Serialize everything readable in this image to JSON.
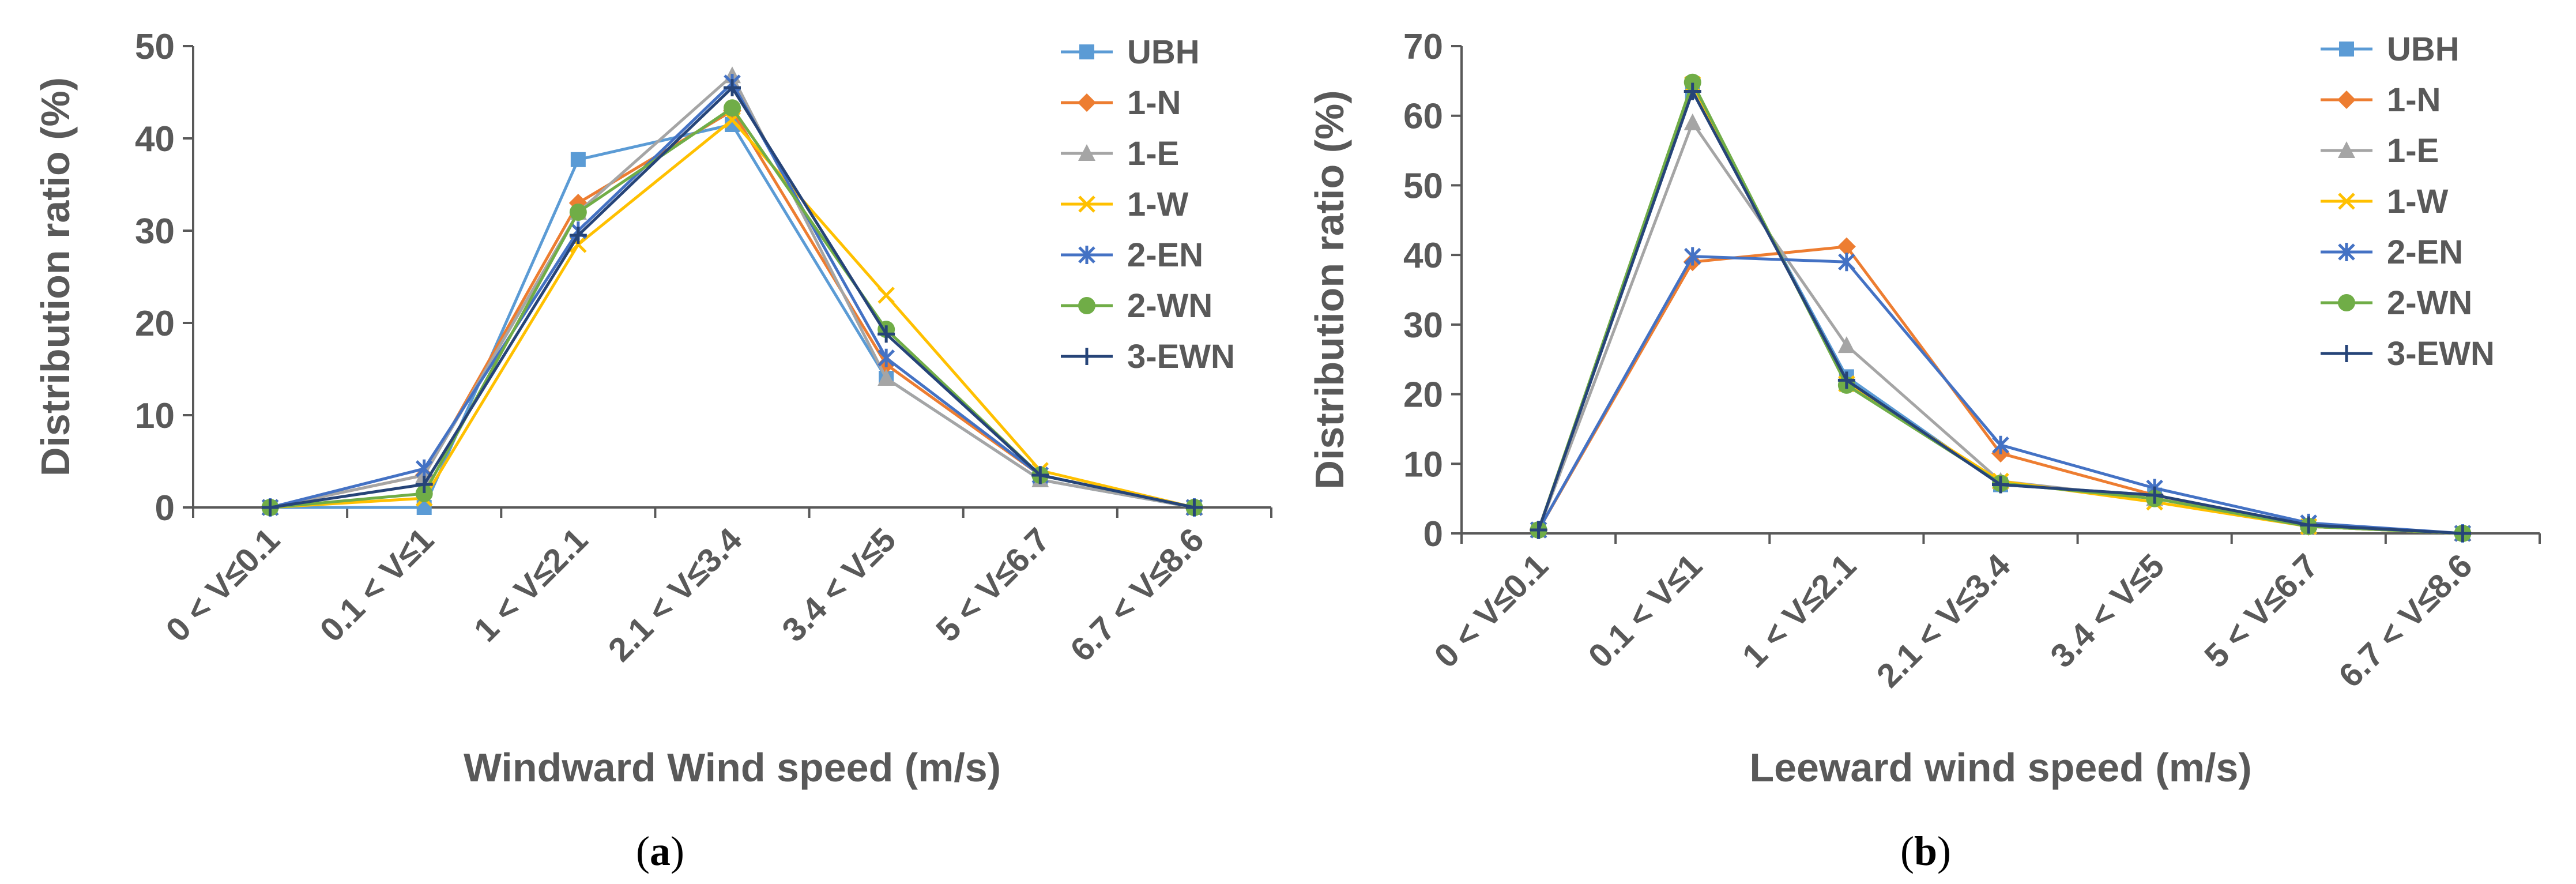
{
  "colors": {
    "UBH": "#5B9BD5",
    "1-N": "#ED7D31",
    "1-E": "#A5A5A5",
    "1-W": "#FFC000",
    "2-EN": "#4472C4",
    "2-WN": "#70AD47",
    "3-EWN": "#264478",
    "axis": "#595959"
  },
  "captions": [
    {
      "open": "(",
      "letter": "a",
      "close": ")"
    },
    {
      "open": "(",
      "letter": "b",
      "close": ")"
    }
  ],
  "chart_data": [
    {
      "type": "line",
      "categories": [
        "0 < V≤0.1",
        "0.1 < V≤1",
        "1 < V≤2.1",
        "2.1 < V≤3.4",
        "3.4 < V≤5",
        "5 < V≤6.7",
        "6.7 < V≤8.6"
      ],
      "xlabel": "Windward Wind speed (m/s)",
      "ylabel": "Distribution ratio (%)",
      "ylim": [
        0,
        50
      ],
      "yticks": [
        "0",
        "10",
        "20",
        "30",
        "40",
        "50"
      ],
      "legend_position": "top-right",
      "series": [
        {
          "name": "UBH",
          "marker": "square",
          "values": [
            0,
            0,
            37.7,
            41.5,
            14,
            3,
            0
          ]
        },
        {
          "name": "1-N",
          "marker": "diamond",
          "values": [
            0,
            3.5,
            33,
            43,
            15.5,
            3.5,
            0
          ]
        },
        {
          "name": "1-E",
          "marker": "triangle",
          "values": [
            0,
            3.5,
            32,
            46.8,
            14,
            3,
            0
          ]
        },
        {
          "name": "1-W",
          "marker": "x",
          "values": [
            0,
            1,
            28.5,
            42,
            23,
            4,
            0
          ]
        },
        {
          "name": "2-EN",
          "marker": "asterisk",
          "values": [
            0,
            4.2,
            30,
            46,
            16.2,
            3.5,
            0
          ]
        },
        {
          "name": "2-WN",
          "marker": "circle",
          "values": [
            0,
            1.5,
            32,
            43.3,
            19.3,
            3.5,
            0
          ]
        },
        {
          "name": "3-EWN",
          "marker": "plus",
          "values": [
            0,
            2.5,
            29.5,
            45.5,
            18.8,
            3.5,
            0
          ]
        }
      ]
    },
    {
      "type": "line",
      "categories": [
        "0 < V≤0.1",
        "0.1 < V≤1",
        "1 < V≤2.1",
        "2.1 < V≤3.4",
        "3.4 < V≤5",
        "5 < V≤6.7",
        "6.7 < V≤8.6"
      ],
      "xlabel": "Leeward wind speed (m/s)",
      "ylabel": "Distribution ratio (%)",
      "ylim": [
        0,
        70
      ],
      "yticks": [
        "0",
        "10",
        "20",
        "30",
        "40",
        "50",
        "60",
        "70"
      ],
      "legend_position": "top-right",
      "series": [
        {
          "name": "UBH",
          "marker": "square",
          "values": [
            0.5,
            63.5,
            22.5,
            7,
            5.5,
            1,
            0
          ]
        },
        {
          "name": "1-N",
          "marker": "diamond",
          "values": [
            0.5,
            39,
            41.2,
            11.5,
            5.5,
            1,
            0
          ]
        },
        {
          "name": "1-E",
          "marker": "triangle",
          "values": [
            0.5,
            59,
            27,
            7.5,
            5,
            1,
            0
          ]
        },
        {
          "name": "1-W",
          "marker": "x",
          "values": [
            0.5,
            64.5,
            21.5,
            7.5,
            4.5,
            1,
            0
          ]
        },
        {
          "name": "2-EN",
          "marker": "asterisk",
          "values": [
            0.5,
            39.8,
            39,
            12.7,
            6.5,
            1.5,
            0
          ]
        },
        {
          "name": "2-WN",
          "marker": "circle",
          "values": [
            0.5,
            64.8,
            21.3,
            7.2,
            5,
            1,
            0
          ]
        },
        {
          "name": "3-EWN",
          "marker": "plus",
          "values": [
            0.5,
            63.5,
            22,
            7,
            5.5,
            1.2,
            0
          ]
        }
      ]
    }
  ]
}
